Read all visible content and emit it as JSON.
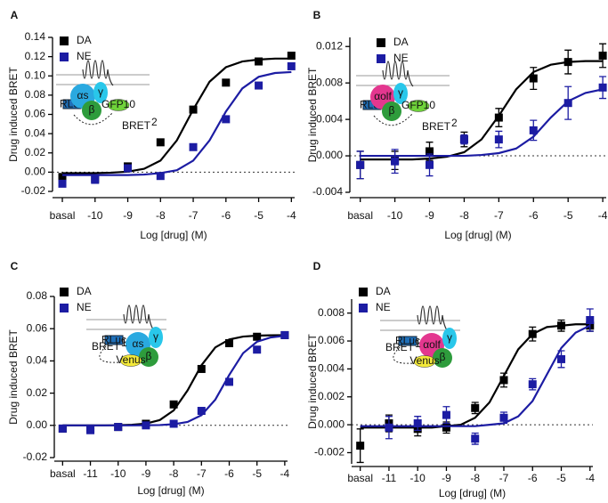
{
  "chart_data": [
    {
      "type": "scatter",
      "panel": "A",
      "ylabel": "Drug induced BRET",
      "xlabel": "Log [drug] (M)",
      "xlim": [
        -11.3,
        -3.9
      ],
      "ylim": [
        -0.02,
        0.14
      ],
      "xticks": [
        {
          "value": -11,
          "label": "basal"
        },
        -10,
        -9,
        -8,
        -7,
        -6,
        -5,
        -4
      ],
      "yticks": [
        -0.02,
        {
          "value": 0,
          "label": "0.00"
        },
        0.02,
        0.04,
        0.06,
        0.08,
        {
          "value": 0.1,
          "label": "0.10"
        },
        0.12,
        0.14
      ],
      "zero_line": true,
      "inset": {
        "alpha": "αs",
        "beta": "β",
        "gamma": "γ",
        "donor": "RLuc",
        "acceptor": "GFP10",
        "signal": "BRET",
        "signal_sup": "2"
      },
      "series": [
        {
          "name": "DA",
          "color": "#000000",
          "x": [
            -11,
            -10,
            -9,
            -8,
            -7,
            -6,
            -5,
            -4
          ],
          "values": [
            -0.005,
            -0.007,
            0.006,
            0.031,
            0.065,
            0.093,
            0.115,
            0.121
          ],
          "fit": {
            "x": [
              -11,
              -10.5,
              -10,
              -9.5,
              -9,
              -8.5,
              -8,
              -7.5,
              -7,
              -6.5,
              -6,
              -5.5,
              -5,
              -4.5,
              -4
            ],
            "values": [
              -0.001,
              -0.001,
              -0.001,
              -0.0005,
              0.0005,
              0.0035,
              0.012,
              0.033,
              0.065,
              0.094,
              0.109,
              0.115,
              0.117,
              0.118,
              0.118
            ]
          }
        },
        {
          "name": "NE",
          "color": "#1c1ca3",
          "x": [
            -11,
            -10,
            -9,
            -8,
            -7,
            -6,
            -5,
            -4
          ],
          "values": [
            -0.012,
            -0.008,
            0.004,
            -0.004,
            0.026,
            0.055,
            0.09,
            0.11
          ],
          "fit": {
            "x": [
              -11,
              -10.5,
              -10,
              -9.5,
              -9,
              -8.5,
              -8,
              -7.5,
              -7,
              -6.5,
              -6,
              -5.5,
              -5,
              -4.5,
              -4
            ],
            "values": [
              -0.003,
              -0.003,
              -0.003,
              -0.003,
              -0.003,
              -0.0025,
              -0.001,
              0.002,
              0.012,
              0.033,
              0.063,
              0.087,
              0.099,
              0.103,
              0.104
            ]
          }
        }
      ]
    },
    {
      "type": "scatter",
      "panel": "B",
      "ylabel": "Drug induced BRET",
      "xlabel": "Log [drug] (M)",
      "xlim": [
        -11.3,
        -3.9
      ],
      "ylim": [
        -0.004,
        0.013
      ],
      "xticks": [
        {
          "value": -11,
          "label": "basal"
        },
        -10,
        -9,
        -8,
        -7,
        -6,
        -5,
        -4
      ],
      "yticks": [
        -0.004,
        {
          "value": 0,
          "label": "0.000"
        },
        0.004,
        0.008,
        0.012
      ],
      "zero_line": true,
      "inset": {
        "alpha": "αolf",
        "beta": "β",
        "gamma": "γ",
        "donor": "RLuc",
        "acceptor": "GFP10",
        "signal": "BRET",
        "signal_sup": "2"
      },
      "series": [
        {
          "name": "DA",
          "color": "#000000",
          "x": [
            -11,
            -10,
            -9,
            -8,
            -7,
            -6,
            -5,
            -4
          ],
          "values": [
            -0.001,
            -0.0005,
            0.0005,
            0.0018,
            0.0042,
            0.0085,
            0.0103,
            0.011
          ],
          "errors": [
            0.0015,
            0.001,
            0.001,
            0.0008,
            0.001,
            0.0012,
            0.0013,
            0.0013
          ],
          "fit": {
            "x": [
              -11,
              -10.5,
              -10,
              -9.5,
              -9,
              -8.5,
              -8,
              -7.5,
              -7,
              -6.5,
              -6,
              -5.5,
              -5,
              -4.5,
              -4
            ],
            "values": [
              -0.0004,
              -0.0004,
              -0.0004,
              -0.0004,
              -0.0003,
              -0.0001,
              0.0004,
              0.0018,
              0.0044,
              0.0073,
              0.0092,
              0.01,
              0.0103,
              0.0104,
              0.0104
            ]
          }
        },
        {
          "name": "NE",
          "color": "#1c1ca3",
          "x": [
            -11,
            -10,
            -9,
            -8,
            -7,
            -6,
            -5,
            -4
          ],
          "values": [
            -0.001,
            -0.0006,
            -0.001,
            0.0018,
            0.0018,
            0.0028,
            0.0058,
            0.0075
          ],
          "errors": [
            0.0015,
            0.0013,
            0.0012,
            0.0005,
            0.0009,
            0.0011,
            0.0018,
            0.0012
          ],
          "fit": {
            "x": [
              -11,
              -10.5,
              -10,
              -9.5,
              -9,
              -8.5,
              -8,
              -7.5,
              -7,
              -6.5,
              -6,
              -5.5,
              -5,
              -4.5,
              -4
            ],
            "values": [
              0,
              0,
              0,
              0,
              0,
              0,
              0,
              0.0001,
              0.0003,
              0.0008,
              0.0021,
              0.0042,
              0.006,
              0.0069,
              0.0073
            ]
          }
        }
      ]
    },
    {
      "type": "scatter",
      "panel": "C",
      "ylabel": "Drug induced BRET",
      "xlabel": "Log [drug] (M)",
      "xlim": [
        -12.3,
        -3.9
      ],
      "ylim": [
        -0.02,
        0.08
      ],
      "xticks": [
        {
          "value": -12,
          "label": "basal"
        },
        -11,
        -10,
        -9,
        -8,
        -7,
        -6,
        -5,
        -4
      ],
      "yticks": [
        -0.02,
        {
          "value": 0,
          "label": "0.00"
        },
        0.02,
        0.04,
        0.06,
        0.08
      ],
      "zero_line": true,
      "inset": {
        "alpha": "αs",
        "beta": "β",
        "gamma": "γ",
        "donor": "RLuc",
        "acceptor": "Venus",
        "signal": "BRET",
        "signal_sup": "1"
      },
      "series": [
        {
          "name": "DA",
          "color": "#000000",
          "x": [
            -12,
            -11,
            -10,
            -9,
            -8,
            -7,
            -6,
            -5,
            -4
          ],
          "values": [
            -0.002,
            -0.002,
            -0.001,
            0.001,
            0.013,
            0.035,
            0.051,
            0.055,
            0.056
          ],
          "fit": {
            "x": [
              -12,
              -11.5,
              -11,
              -10.5,
              -10,
              -9.5,
              -9,
              -8.5,
              -8,
              -7.5,
              -7,
              -6.5,
              -6,
              -5.5,
              -5,
              -4.5,
              -4
            ],
            "values": [
              0,
              0,
              0,
              0,
              0.0001,
              0.0004,
              0.0011,
              0.0033,
              0.0093,
              0.0217,
              0.0373,
              0.0484,
              0.0533,
              0.0551,
              0.0557,
              0.0559,
              0.056
            ]
          }
        },
        {
          "name": "NE",
          "color": "#1c1ca3",
          "x": [
            -12,
            -11,
            -10,
            -9,
            -8,
            -7,
            -6,
            -5,
            -4
          ],
          "values": [
            -0.002,
            -0.003,
            -0.001,
            0,
            0.001,
            0.009,
            0.027,
            0.047,
            0.056
          ],
          "fit": {
            "x": [
              -12,
              -11.5,
              -11,
              -10.5,
              -10,
              -9.5,
              -9,
              -8.5,
              -8,
              -7.5,
              -7,
              -6.5,
              -6,
              -5.5,
              -5,
              -4.5,
              -4
            ],
            "values": [
              0,
              0,
              0,
              0,
              0,
              0,
              0.0001,
              0.0002,
              0.0007,
              0.0021,
              0.0063,
              0.016,
              0.0313,
              0.0448,
              0.0519,
              0.0546,
              0.0556
            ]
          }
        }
      ]
    },
    {
      "type": "scatter",
      "panel": "D",
      "ylabel": "Drug induced BRET",
      "xlabel": "Log [drug] (M)",
      "xlim": [
        -12.3,
        -3.9
      ],
      "ylim": [
        -0.0028,
        0.009
      ],
      "xticks": [
        {
          "value": -12,
          "label": "basal"
        },
        -11,
        -10,
        -9,
        -8,
        -7,
        -6,
        -5,
        -4
      ],
      "yticks": [
        -0.002,
        {
          "value": 0,
          "label": "0.000"
        },
        0.002,
        0.004,
        0.006,
        0.008
      ],
      "zero_line": true,
      "inset": {
        "alpha": "αolf",
        "beta": "β",
        "gamma": "γ",
        "donor": "RLuc",
        "acceptor": "Venus",
        "signal": "BRET",
        "signal_sup": "1"
      },
      "series": [
        {
          "name": "DA",
          "color": "#000000",
          "x": [
            -12,
            -11,
            -10,
            -9,
            -8,
            -7,
            -6,
            -5,
            -4
          ],
          "values": [
            -0.0015,
            0.0001,
            -0.0003,
            -0.0002,
            0.0012,
            0.0032,
            0.0065,
            0.0071,
            0.0071
          ],
          "errors": [
            0.0012,
            0.0006,
            0.0005,
            0.0004,
            0.0004,
            0.0005,
            0.0005,
            0.0004,
            0.0004
          ],
          "fit": {
            "x": [
              -12,
              -11.5,
              -11,
              -10.5,
              -10,
              -9.5,
              -9,
              -8.5,
              -8,
              -7.5,
              -7,
              -6.5,
              -6,
              -5.5,
              -5,
              -4.5,
              -4
            ],
            "values": [
              -0.0002,
              -0.0002,
              -0.0002,
              -0.0002,
              -0.0002,
              -0.0002,
              -0.0001,
              0,
              0.0005,
              0.0016,
              0.0035,
              0.0054,
              0.0065,
              0.007,
              0.0071,
              0.0072,
              0.0072
            ]
          }
        },
        {
          "name": "NE",
          "color": "#1c1ca3",
          "x": [
            -11,
            -10,
            -9,
            -8,
            -7,
            -6,
            -5,
            -4
          ],
          "values": [
            -0.0002,
            0.0001,
            0.0007,
            -0.001,
            0.0005,
            0.0029,
            0.0047,
            0.0075
          ],
          "errors": [
            0.0008,
            0.0005,
            0.0006,
            0.0004,
            0.0004,
            0.0004,
            0.0006,
            0.0008
          ],
          "fit": {
            "x": [
              -12,
              -11.5,
              -11,
              -10.5,
              -10,
              -9.5,
              -9,
              -8.5,
              -8,
              -7.5,
              -7,
              -6.5,
              -6,
              -5.5,
              -5,
              -4.5,
              -4
            ],
            "values": [
              -0.0001,
              -0.0001,
              -0.0001,
              -0.0001,
              -0.0001,
              -0.0001,
              -0.0001,
              -0.0001,
              -0.0001,
              0,
              0.0001,
              0.0006,
              0.0017,
              0.0036,
              0.0055,
              0.0066,
              0.0071
            ]
          }
        }
      ]
    }
  ]
}
